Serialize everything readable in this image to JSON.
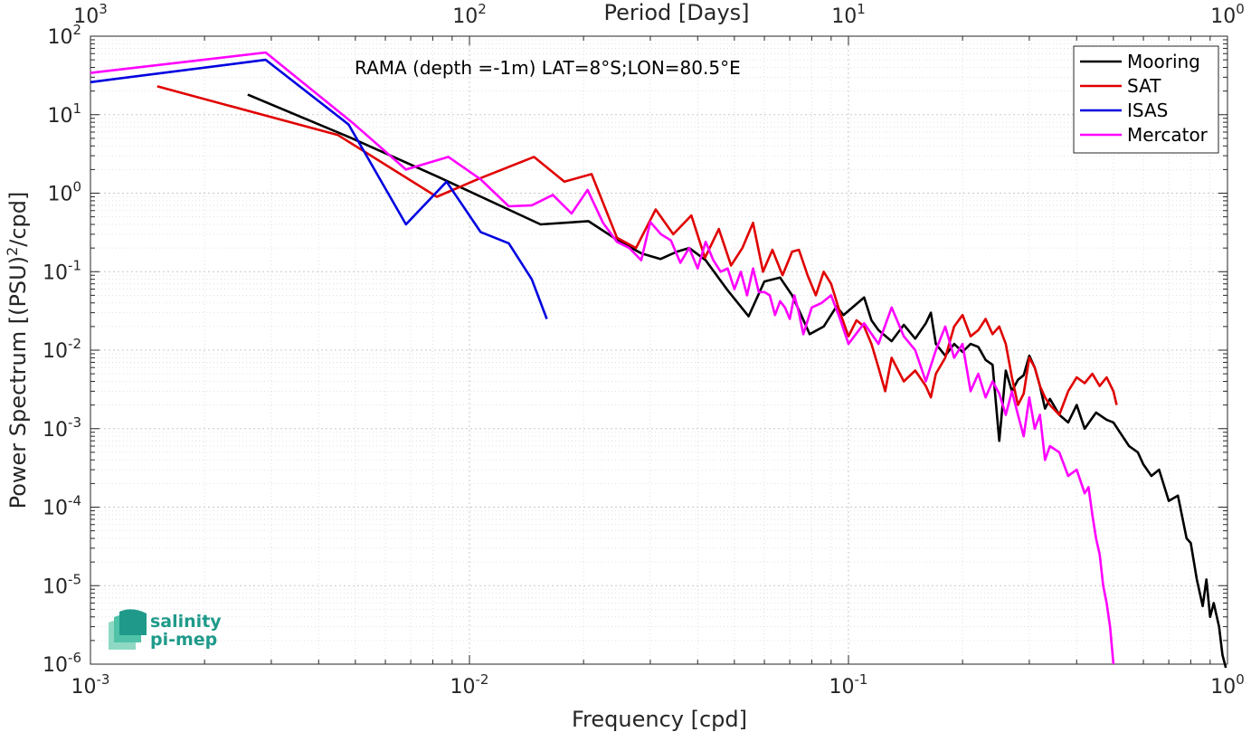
{
  "chart_data": {
    "type": "line",
    "x_scale": "log",
    "y_scale": "log",
    "xlabel": "Frequency [cpd]",
    "ylabel": "Power Spectrum [(PSU)^2/cpd]",
    "ylabel_parts": {
      "pre": "Power Spectrum [(PSU)",
      "sup": "2",
      "post": "/cpd]"
    },
    "top_xlabel": "Period [Days]",
    "annotation": "RAMA (depth =-1m) LAT=8°S;LON=80.5°E",
    "xlim": [
      0.001,
      1
    ],
    "ylim": [
      1e-06,
      100
    ],
    "grid": true,
    "legend_position": "top-right",
    "x_ticks": [
      {
        "value": 0.001,
        "base": "10",
        "exp": "-3"
      },
      {
        "value": 0.01,
        "base": "10",
        "exp": "-2"
      },
      {
        "value": 0.1,
        "base": "10",
        "exp": "-1"
      },
      {
        "value": 1,
        "base": "10",
        "exp": "0"
      }
    ],
    "top_ticks": [
      {
        "value": 0.001,
        "base": "10",
        "exp": "3"
      },
      {
        "value": 0.01,
        "base": "10",
        "exp": "2"
      },
      {
        "value": 0.1,
        "base": "10",
        "exp": "1"
      },
      {
        "value": 1,
        "base": "10",
        "exp": "0"
      }
    ],
    "y_ticks": [
      {
        "value": 100,
        "base": "10",
        "exp": "2"
      },
      {
        "value": 10,
        "base": "10",
        "exp": "1"
      },
      {
        "value": 1,
        "base": "10",
        "exp": "0"
      },
      {
        "value": 0.1,
        "base": "10",
        "exp": "-1"
      },
      {
        "value": 0.01,
        "base": "10",
        "exp": "-2"
      },
      {
        "value": 0.001,
        "base": "10",
        "exp": "-3"
      },
      {
        "value": 0.0001,
        "base": "10",
        "exp": "-4"
      },
      {
        "value": 1e-05,
        "base": "10",
        "exp": "-5"
      },
      {
        "value": 1e-06,
        "base": "10",
        "exp": "-6"
      }
    ],
    "series": [
      {
        "name": "Mooring",
        "color": "#000000",
        "points": [
          [
            0.0026,
            18
          ],
          [
            0.0049,
            5.0
          ],
          [
            0.0083,
            1.6
          ],
          [
            0.0154,
            0.4
          ],
          [
            0.0206,
            0.44
          ],
          [
            0.025,
            0.24
          ],
          [
            0.0285,
            0.17
          ],
          [
            0.0319,
            0.145
          ],
          [
            0.0353,
            0.18
          ],
          [
            0.038,
            0.2
          ],
          [
            0.042,
            0.14
          ],
          [
            0.048,
            0.058
          ],
          [
            0.0545,
            0.027
          ],
          [
            0.06,
            0.075
          ],
          [
            0.066,
            0.084
          ],
          [
            0.071,
            0.05
          ],
          [
            0.075,
            0.028
          ],
          [
            0.079,
            0.016
          ],
          [
            0.086,
            0.02
          ],
          [
            0.093,
            0.036
          ],
          [
            0.097,
            0.028
          ],
          [
            0.11,
            0.047
          ],
          [
            0.115,
            0.024
          ],
          [
            0.12,
            0.018
          ],
          [
            0.13,
            0.013
          ],
          [
            0.14,
            0.021
          ],
          [
            0.15,
            0.014
          ],
          [
            0.16,
            0.022
          ],
          [
            0.165,
            0.03
          ],
          [
            0.17,
            0.012
          ],
          [
            0.18,
            0.0085
          ],
          [
            0.19,
            0.012
          ],
          [
            0.2,
            0.0095
          ],
          [
            0.21,
            0.012
          ],
          [
            0.22,
            0.011
          ],
          [
            0.23,
            0.0075
          ],
          [
            0.24,
            0.0065
          ],
          [
            0.25,
            0.0007
          ],
          [
            0.26,
            0.0055
          ],
          [
            0.27,
            0.003
          ],
          [
            0.28,
            0.0042
          ],
          [
            0.29,
            0.0048
          ],
          [
            0.3,
            0.0085
          ],
          [
            0.31,
            0.006
          ],
          [
            0.32,
            0.0035
          ],
          [
            0.33,
            0.0018
          ],
          [
            0.34,
            0.0024
          ],
          [
            0.36,
            0.0015
          ],
          [
            0.38,
            0.0012
          ],
          [
            0.4,
            0.002
          ],
          [
            0.42,
            0.001
          ],
          [
            0.45,
            0.0016
          ],
          [
            0.48,
            0.0013
          ],
          [
            0.5,
            0.0012
          ],
          [
            0.52,
            0.0009
          ],
          [
            0.55,
            0.0006
          ],
          [
            0.58,
            0.0005
          ],
          [
            0.6,
            0.00035
          ],
          [
            0.63,
            0.00025
          ],
          [
            0.66,
            0.0003
          ],
          [
            0.7,
            0.00012
          ],
          [
            0.74,
            0.00014
          ],
          [
            0.78,
            4e-05
          ],
          [
            0.8,
            3.5e-05
          ],
          [
            0.83,
            1.2e-05
          ],
          [
            0.86,
            5.5e-06
          ],
          [
            0.88,
            1.2e-05
          ],
          [
            0.9,
            4e-06
          ],
          [
            0.92,
            6e-06
          ],
          [
            0.95,
            3e-06
          ],
          [
            0.97,
            1.3e-06
          ],
          [
            0.99,
            9e-07
          ]
        ]
      },
      {
        "name": "SAT",
        "color": "#e00000",
        "points": [
          [
            0.0015,
            23
          ],
          [
            0.0045,
            5.5
          ],
          [
            0.0082,
            0.9
          ],
          [
            0.0105,
            1.5
          ],
          [
            0.0148,
            2.9
          ],
          [
            0.0178,
            1.4
          ],
          [
            0.021,
            1.75
          ],
          [
            0.0245,
            0.27
          ],
          [
            0.0275,
            0.2
          ],
          [
            0.031,
            0.62
          ],
          [
            0.0345,
            0.3
          ],
          [
            0.0385,
            0.52
          ],
          [
            0.0418,
            0.15
          ],
          [
            0.0455,
            0.35
          ],
          [
            0.049,
            0.12
          ],
          [
            0.0525,
            0.2
          ],
          [
            0.056,
            0.42
          ],
          [
            0.0595,
            0.1
          ],
          [
            0.063,
            0.19
          ],
          [
            0.067,
            0.09
          ],
          [
            0.071,
            0.18
          ],
          [
            0.074,
            0.19
          ],
          [
            0.078,
            0.09
          ],
          [
            0.082,
            0.05
          ],
          [
            0.086,
            0.1
          ],
          [
            0.09,
            0.07
          ],
          [
            0.095,
            0.03
          ],
          [
            0.1,
            0.015
          ],
          [
            0.105,
            0.024
          ],
          [
            0.11,
            0.02
          ],
          [
            0.115,
            0.012
          ],
          [
            0.12,
            0.006
          ],
          [
            0.125,
            0.003
          ],
          [
            0.13,
            0.008
          ],
          [
            0.14,
            0.004
          ],
          [
            0.15,
            0.0055
          ],
          [
            0.16,
            0.0035
          ],
          [
            0.165,
            0.0025
          ],
          [
            0.17,
            0.005
          ],
          [
            0.18,
            0.008
          ],
          [
            0.19,
            0.02
          ],
          [
            0.2,
            0.028
          ],
          [
            0.21,
            0.015
          ],
          [
            0.22,
            0.018
          ],
          [
            0.23,
            0.025
          ],
          [
            0.24,
            0.016
          ],
          [
            0.25,
            0.02
          ],
          [
            0.26,
            0.012
          ],
          [
            0.27,
            0.0045
          ],
          [
            0.28,
            0.002
          ],
          [
            0.29,
            0.0028
          ],
          [
            0.3,
            0.008
          ],
          [
            0.31,
            0.006
          ],
          [
            0.32,
            0.0035
          ],
          [
            0.33,
            0.0025
          ],
          [
            0.34,
            0.002
          ],
          [
            0.36,
            0.0015
          ],
          [
            0.38,
            0.003
          ],
          [
            0.4,
            0.0045
          ],
          [
            0.42,
            0.0038
          ],
          [
            0.44,
            0.005
          ],
          [
            0.46,
            0.0035
          ],
          [
            0.48,
            0.0045
          ],
          [
            0.5,
            0.003
          ],
          [
            0.51,
            0.002
          ]
        ]
      },
      {
        "name": "ISAS",
        "color": "#0000e0",
        "points": [
          [
            0.001,
            26
          ],
          [
            0.0029,
            50
          ],
          [
            0.0048,
            7.5
          ],
          [
            0.0068,
            0.4
          ],
          [
            0.0087,
            1.4
          ],
          [
            0.0107,
            0.32
          ],
          [
            0.0127,
            0.23
          ],
          [
            0.0146,
            0.08
          ],
          [
            0.016,
            0.025
          ]
        ]
      },
      {
        "name": "Mercator",
        "color": "#ff00ff",
        "points": [
          [
            0.001,
            34
          ],
          [
            0.0029,
            62
          ],
          [
            0.0049,
            8.0
          ],
          [
            0.0068,
            2.0
          ],
          [
            0.0088,
            2.9
          ],
          [
            0.0107,
            1.5
          ],
          [
            0.0127,
            0.68
          ],
          [
            0.0146,
            0.7
          ],
          [
            0.0166,
            0.95
          ],
          [
            0.0186,
            0.55
          ],
          [
            0.0205,
            1.1
          ],
          [
            0.0225,
            0.42
          ],
          [
            0.0245,
            0.24
          ],
          [
            0.0264,
            0.2
          ],
          [
            0.0284,
            0.14
          ],
          [
            0.03,
            0.43
          ],
          [
            0.032,
            0.3
          ],
          [
            0.034,
            0.25
          ],
          [
            0.036,
            0.13
          ],
          [
            0.038,
            0.2
          ],
          [
            0.04,
            0.11
          ],
          [
            0.042,
            0.24
          ],
          [
            0.044,
            0.14
          ],
          [
            0.046,
            0.1
          ],
          [
            0.048,
            0.11
          ],
          [
            0.05,
            0.06
          ],
          [
            0.052,
            0.1
          ],
          [
            0.054,
            0.05
          ],
          [
            0.056,
            0.11
          ],
          [
            0.058,
            0.055
          ],
          [
            0.06,
            0.055
          ],
          [
            0.062,
            0.05
          ],
          [
            0.064,
            0.028
          ],
          [
            0.066,
            0.042
          ],
          [
            0.068,
            0.035
          ],
          [
            0.07,
            0.025
          ],
          [
            0.072,
            0.05
          ],
          [
            0.074,
            0.03
          ],
          [
            0.076,
            0.016
          ],
          [
            0.08,
            0.035
          ],
          [
            0.085,
            0.04
          ],
          [
            0.09,
            0.05
          ],
          [
            0.095,
            0.025
          ],
          [
            0.1,
            0.012
          ],
          [
            0.11,
            0.022
          ],
          [
            0.12,
            0.012
          ],
          [
            0.13,
            0.035
          ],
          [
            0.14,
            0.015
          ],
          [
            0.15,
            0.01
          ],
          [
            0.16,
            0.004
          ],
          [
            0.17,
            0.01
          ],
          [
            0.18,
            0.02
          ],
          [
            0.19,
            0.008
          ],
          [
            0.2,
            0.012
          ],
          [
            0.21,
            0.003
          ],
          [
            0.22,
            0.005
          ],
          [
            0.23,
            0.0025
          ],
          [
            0.24,
            0.004
          ],
          [
            0.25,
            0.0028
          ],
          [
            0.26,
            0.0015
          ],
          [
            0.27,
            0.003
          ],
          [
            0.28,
            0.0015
          ],
          [
            0.29,
            0.0008
          ],
          [
            0.3,
            0.0025
          ],
          [
            0.31,
            0.001
          ],
          [
            0.32,
            0.0015
          ],
          [
            0.33,
            0.0004
          ],
          [
            0.34,
            0.0006
          ],
          [
            0.36,
            0.0005
          ],
          [
            0.38,
            0.00025
          ],
          [
            0.4,
            0.0003
          ],
          [
            0.42,
            0.00015
          ],
          [
            0.43,
            0.00018
          ],
          [
            0.44,
            8e-05
          ],
          [
            0.45,
            4e-05
          ],
          [
            0.46,
            2.5e-05
          ],
          [
            0.47,
            1e-05
          ],
          [
            0.48,
            6e-06
          ],
          [
            0.49,
            3e-06
          ],
          [
            0.5,
            1e-06
          ]
        ]
      }
    ]
  },
  "logo": {
    "line1": "salinity",
    "line2": "pi-mep"
  }
}
